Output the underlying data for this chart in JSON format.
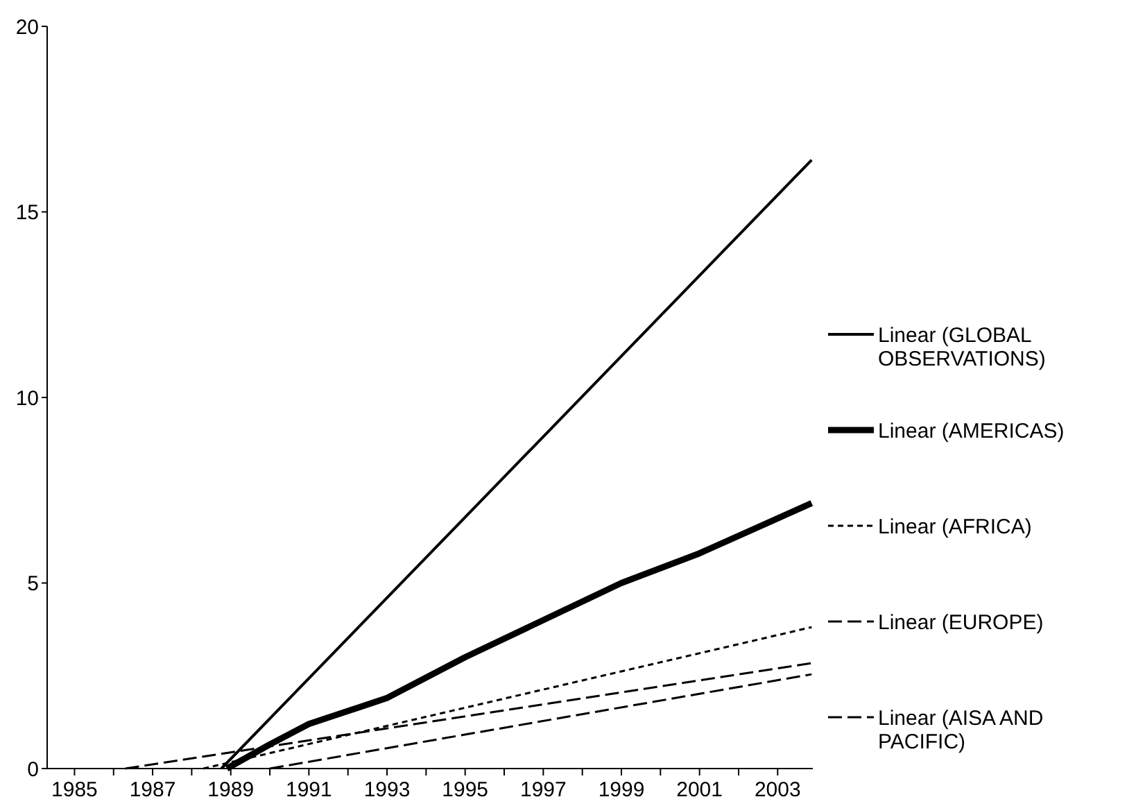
{
  "chart_data": {
    "type": "line",
    "xlim": [
      1984.3,
      2003.9
    ],
    "xticks": [
      1985,
      {
        "value": 1986,
        "label": null
      },
      1987,
      {
        "value": 1988,
        "label": null
      },
      1989,
      {
        "value": 1990,
        "label": null
      },
      1991,
      {
        "value": 1992,
        "label": null
      },
      1993,
      {
        "value": 1994,
        "label": null
      },
      1995,
      {
        "value": 1996,
        "label": null
      },
      1997,
      {
        "value": 1998,
        "label": null
      },
      1999,
      {
        "value": 2000,
        "label": null
      },
      2001,
      {
        "value": 2002,
        "label": null
      },
      2003
    ],
    "ylim": [
      0,
      20
    ],
    "yticks": [
      0,
      5,
      10,
      15,
      20
    ],
    "grid": false,
    "legend": "right",
    "marker": "none",
    "series": [
      {
        "name": "Linear (GLOBAL OBSERVATIONS)",
        "color": "#000000",
        "line_style": "solid",
        "x": [
          1988.76,
          2003.87
        ],
        "values": [
          0,
          16.4
        ]
      },
      {
        "name": "Linear (AMERICAS)",
        "color": "#000000",
        "line_style": "solid",
        "x": [
          1988.9,
          1990,
          1991,
          1993,
          1995,
          1997,
          1999,
          2001,
          2003.87
        ],
        "values": [
          0,
          0.65,
          1.2,
          1.9,
          3.0,
          4.0,
          5.0,
          5.8,
          7.15
        ]
      },
      {
        "name": "Linear (AFRICA)",
        "color": "#000000",
        "line_style": "dotted",
        "x": [
          1988.3,
          2003.87
        ],
        "values": [
          0,
          3.81
        ]
      },
      {
        "name": "Linear (EUROPE)",
        "color": "#000000",
        "line_style": "dashed",
        "x": [
          1986.3,
          2003.87
        ],
        "values": [
          0,
          2.84
        ]
      },
      {
        "name": "Linear (AISA AND PACIFIC)",
        "color": "#000000",
        "line_style": "dashed",
        "x": [
          1990.0,
          2003.87
        ],
        "values": [
          0,
          2.54
        ]
      }
    ]
  }
}
